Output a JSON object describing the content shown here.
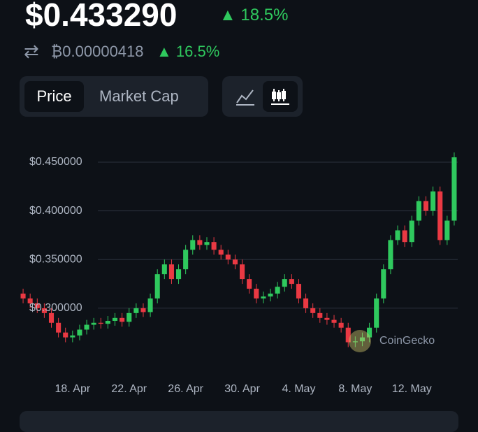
{
  "header": {
    "price": "$0.433290",
    "price_change": "18.5%",
    "btc_price": "₿0.00000418",
    "btc_change": "16.5%"
  },
  "tabs": [
    "Price",
    "Market Cap"
  ],
  "watermark": "CoinGecko",
  "chart_data": {
    "type": "candlestick",
    "up_color": "#2fc95e",
    "down_color": "#ea3943",
    "grid": true,
    "ylim": [
      0.236,
      0.473
    ],
    "yticks": [
      {
        "value": 0.3,
        "label": "$0.300000"
      },
      {
        "value": 0.35,
        "label": "$0.350000"
      },
      {
        "value": 0.4,
        "label": "$0.400000"
      },
      {
        "value": 0.45,
        "label": "$0.450000"
      }
    ],
    "categories": [
      null,
      null,
      null,
      null,
      null,
      null,
      null,
      "18. Apr",
      null,
      null,
      null,
      null,
      null,
      null,
      null,
      "22. Apr",
      null,
      null,
      null,
      null,
      null,
      null,
      null,
      "26. Apr",
      null,
      null,
      null,
      null,
      null,
      null,
      null,
      "30. Apr",
      null,
      null,
      null,
      null,
      null,
      null,
      null,
      "4. May",
      null,
      null,
      null,
      null,
      null,
      null,
      null,
      "8. May",
      null,
      null,
      null,
      null,
      null,
      null,
      null,
      "12. May",
      null,
      null,
      null,
      null,
      null,
      null
    ],
    "open": [
      0.315,
      0.31,
      0.305,
      0.3,
      0.295,
      0.285,
      0.275,
      0.27,
      0.272,
      0.278,
      0.283,
      0.285,
      0.284,
      0.287,
      0.29,
      0.286,
      0.295,
      0.3,
      0.296,
      0.31,
      0.335,
      0.345,
      0.33,
      0.34,
      0.36,
      0.37,
      0.365,
      0.368,
      0.36,
      0.355,
      0.35,
      0.345,
      0.33,
      0.32,
      0.31,
      0.312,
      0.315,
      0.322,
      0.33,
      0.325,
      0.31,
      0.3,
      0.295,
      0.29,
      0.288,
      0.285,
      0.28,
      0.265,
      0.266,
      0.27,
      0.28,
      0.31,
      0.34,
      0.37,
      0.38,
      0.368,
      0.39,
      0.41,
      0.4,
      0.42,
      0.37,
      0.39
    ],
    "high": [
      0.32,
      0.315,
      0.31,
      0.305,
      0.3,
      0.29,
      0.28,
      0.277,
      0.283,
      0.288,
      0.29,
      0.29,
      0.292,
      0.295,
      0.295,
      0.3,
      0.305,
      0.305,
      0.315,
      0.34,
      0.35,
      0.35,
      0.345,
      0.365,
      0.375,
      0.375,
      0.373,
      0.373,
      0.365,
      0.36,
      0.355,
      0.35,
      0.335,
      0.325,
      0.317,
      0.32,
      0.327,
      0.335,
      0.335,
      0.33,
      0.315,
      0.305,
      0.3,
      0.295,
      0.293,
      0.29,
      0.285,
      0.271,
      0.275,
      0.285,
      0.315,
      0.345,
      0.375,
      0.385,
      0.385,
      0.395,
      0.415,
      0.415,
      0.425,
      0.425,
      0.395,
      0.46
    ],
    "low": [
      0.305,
      0.3,
      0.295,
      0.29,
      0.28,
      0.27,
      0.265,
      0.265,
      0.267,
      0.273,
      0.278,
      0.279,
      0.279,
      0.282,
      0.281,
      0.281,
      0.29,
      0.291,
      0.291,
      0.305,
      0.33,
      0.325,
      0.325,
      0.335,
      0.355,
      0.36,
      0.36,
      0.355,
      0.35,
      0.345,
      0.34,
      0.325,
      0.315,
      0.305,
      0.305,
      0.307,
      0.31,
      0.317,
      0.32,
      0.305,
      0.295,
      0.29,
      0.285,
      0.283,
      0.28,
      0.275,
      0.26,
      0.26,
      0.261,
      0.265,
      0.275,
      0.305,
      0.335,
      0.365,
      0.363,
      0.363,
      0.385,
      0.395,
      0.395,
      0.365,
      0.365,
      0.385
    ],
    "close": [
      0.31,
      0.305,
      0.3,
      0.295,
      0.285,
      0.275,
      0.27,
      0.272,
      0.278,
      0.283,
      0.285,
      0.284,
      0.287,
      0.29,
      0.286,
      0.295,
      0.3,
      0.296,
      0.31,
      0.335,
      0.345,
      0.33,
      0.34,
      0.36,
      0.37,
      0.365,
      0.368,
      0.36,
      0.355,
      0.35,
      0.345,
      0.33,
      0.32,
      0.31,
      0.312,
      0.315,
      0.322,
      0.33,
      0.325,
      0.31,
      0.3,
      0.295,
      0.29,
      0.288,
      0.285,
      0.28,
      0.265,
      0.266,
      0.27,
      0.28,
      0.31,
      0.34,
      0.37,
      0.38,
      0.368,
      0.39,
      0.41,
      0.4,
      0.42,
      0.37,
      0.39,
      0.455
    ]
  }
}
